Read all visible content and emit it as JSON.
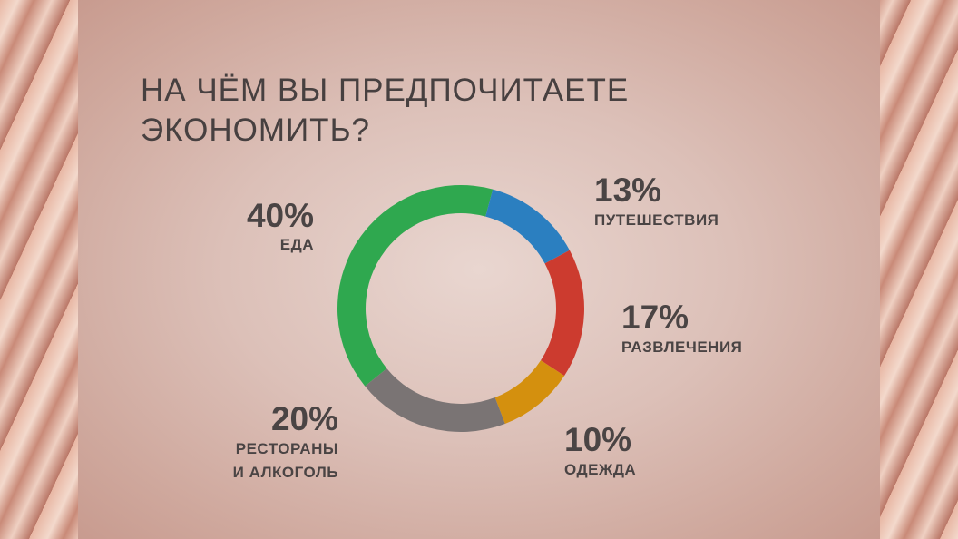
{
  "chart_data": {
    "type": "donut",
    "title": "НА ЧЁМ ВЫ ПРЕДПОЧИТАЕТЕ ЭКОНОМИТЬ?",
    "categories": [
      "ЕДА",
      "ПУТЕШЕСТВИЯ",
      "РАЗВЛЕЧЕНИЯ",
      "ОДЕЖДА",
      "РЕСТОРАНЫ И АЛКОГОЛЬ"
    ],
    "values": [
      40,
      13,
      17,
      10,
      20
    ],
    "value_labels": [
      "40%",
      "13%",
      "17%",
      "10%",
      "20%"
    ],
    "colors": [
      "#2fa84f",
      "#2b7fc0",
      "#cc3b2f",
      "#d4900e",
      "#7a7474"
    ]
  }
}
